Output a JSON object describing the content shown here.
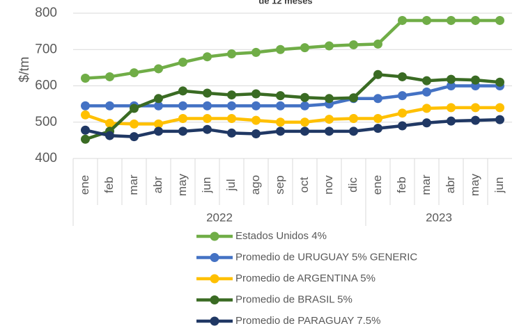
{
  "chart_data": {
    "type": "line",
    "title": "de 12 meses",
    "y_label": "$/tm",
    "groups": [
      {
        "label": "2022",
        "months": [
          "ene",
          "feb",
          "mar",
          "abr",
          "may",
          "jun",
          "jul",
          "ago",
          "sep",
          "oct",
          "nov",
          "dic"
        ]
      },
      {
        "label": "2023",
        "months": [
          "ene",
          "feb",
          "mar",
          "abr",
          "may",
          "jun"
        ]
      }
    ],
    "ylim": [
      400,
      800
    ],
    "yticks": [
      400,
      500,
      600,
      700,
      800
    ],
    "grid": true,
    "series": [
      {
        "name": "Estados Unidos 4%",
        "color": "#70ad47",
        "values": [
          621,
          625,
          636,
          647,
          665,
          680,
          688,
          692,
          700,
          705,
          710,
          713,
          715,
          780,
          780,
          780,
          780,
          780
        ]
      },
      {
        "name": "Promedio de URUGUAY 5% GENERIC",
        "color": "#4472c4",
        "values": [
          545,
          545,
          545,
          545,
          545,
          545,
          545,
          545,
          545,
          545,
          550,
          565,
          565,
          573,
          583,
          600,
          600,
          600
        ]
      },
      {
        "name": "Promedio de ARGENTINA 5%",
        "color": "#ffc000",
        "values": [
          520,
          497,
          495,
          495,
          510,
          510,
          510,
          505,
          500,
          500,
          508,
          510,
          510,
          525,
          538,
          540,
          540,
          540
        ]
      },
      {
        "name": "Promedio de BRASIL 5%",
        "color": "#3a6b23",
        "values": [
          453,
          475,
          538,
          565,
          586,
          580,
          575,
          578,
          573,
          568,
          565,
          567,
          631,
          625,
          614,
          618,
          616,
          610
        ]
      },
      {
        "name": "Promedio de PARAGUAY 7.5%",
        "color": "#203864",
        "values": [
          478,
          463,
          460,
          475,
          475,
          480,
          470,
          468,
          475,
          475,
          475,
          475,
          483,
          490,
          498,
          503,
          505,
          507
        ]
      }
    ]
  }
}
